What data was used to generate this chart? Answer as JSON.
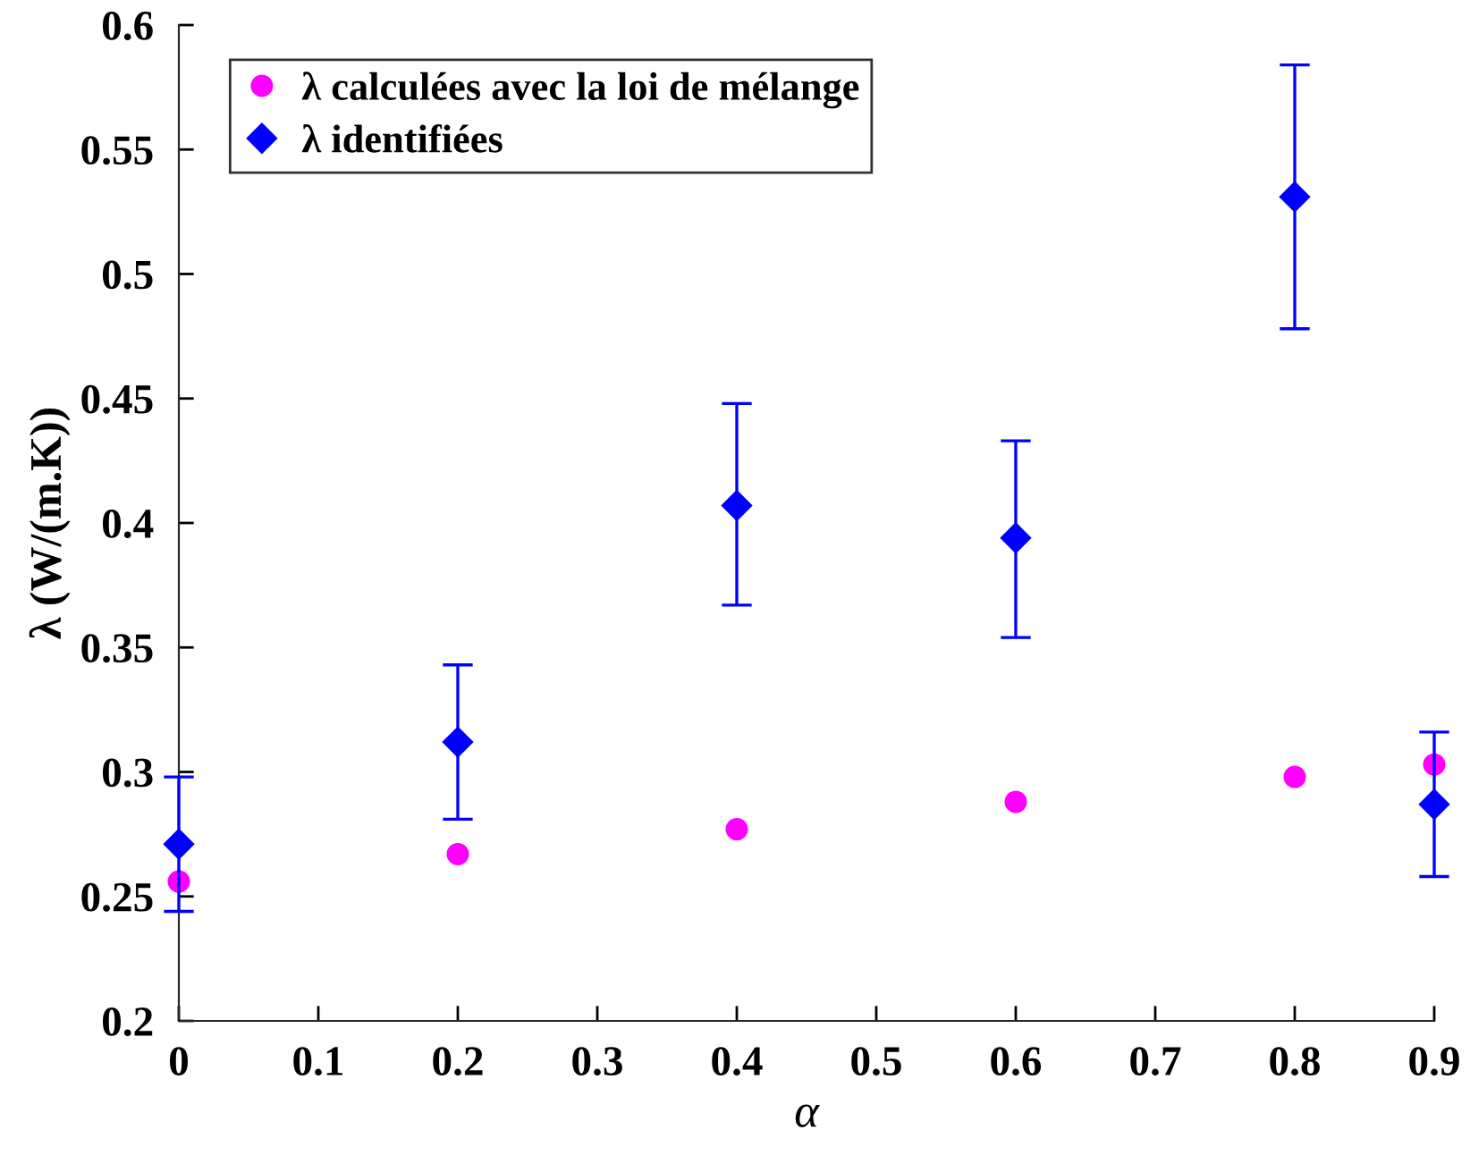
{
  "chart_data": {
    "type": "scatter",
    "xlabel": "α",
    "ylabel": "λ (W/(m.K))",
    "x": [
      0,
      0.2,
      0.4,
      0.6,
      0.8,
      0.9
    ],
    "series": [
      {
        "name": "λ calculées avec la loi de mélange",
        "color": "#ff00ff",
        "marker": "circle",
        "values": [
          0.256,
          0.267,
          0.277,
          0.288,
          0.298,
          0.303
        ]
      },
      {
        "name": "λ identifiées",
        "color": "#0000ff",
        "marker": "diamond",
        "values": [
          0.271,
          0.312,
          0.407,
          0.394,
          0.531,
          0.287
        ],
        "errors": [
          [
            0.244,
            0.298
          ],
          [
            0.281,
            0.343
          ],
          [
            0.367,
            0.448
          ],
          [
            0.354,
            0.433
          ],
          [
            0.478,
            0.584
          ],
          [
            0.258,
            0.316
          ]
        ]
      }
    ],
    "xlim": [
      0,
      0.9
    ],
    "xticks": [
      0,
      0.1,
      0.2,
      0.3,
      0.4,
      0.5,
      0.6,
      0.7,
      0.8,
      0.9
    ],
    "ylim": [
      0.2,
      0.6
    ],
    "yticks": [
      0.2,
      0.25,
      0.3,
      0.35,
      0.4,
      0.45,
      0.5,
      0.55,
      0.6
    ],
    "grid": false,
    "legend": "top left"
  }
}
